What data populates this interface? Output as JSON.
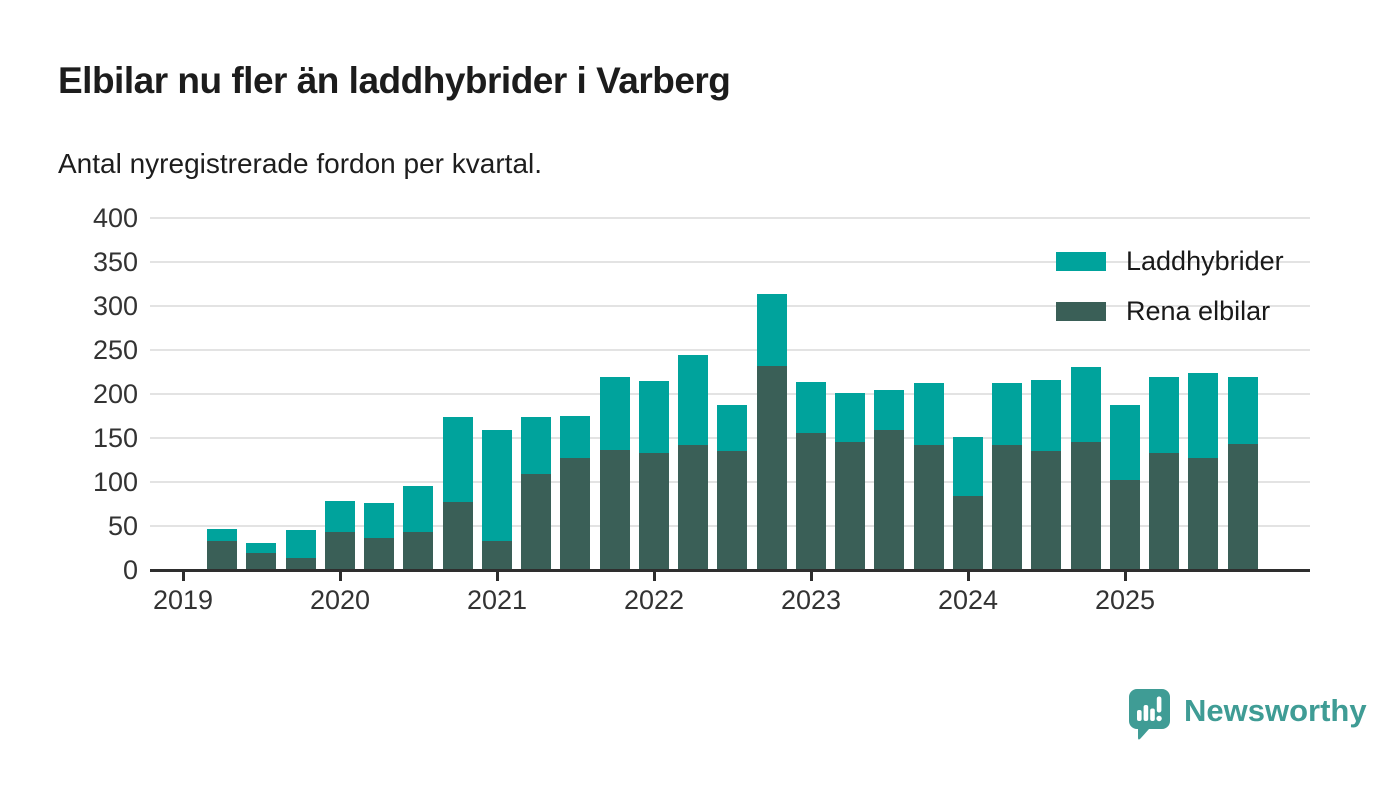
{
  "header": {
    "title": "Elbilar nu fler än laddhybrider i Varberg",
    "subtitle": "Antal nyregistrerade fordon per kvartal."
  },
  "legend": {
    "items": [
      {
        "label": "Laddhybrider",
        "color": "#00a39c"
      },
      {
        "label": "Rena elbilar",
        "color": "#3a5f57"
      }
    ]
  },
  "branding": {
    "name": "Newsworthy",
    "color": "#3f9c95",
    "icon": "newsworthy-speech-bubble-barchart-icon"
  },
  "colors": {
    "background": "#ffffff",
    "laddhybrider": "#00a39c",
    "rena_elbilar": "#3a5f57",
    "axis": "#2e2e2e",
    "axis_text": "#333333",
    "grid": "#e3e3e3",
    "title_text": "#1c1c1c"
  },
  "chart_data": {
    "type": "bar",
    "stacked": true,
    "title": "Elbilar nu fler än laddhybrider i Varberg",
    "subtitle": "Antal nyregistrerade fordon per kvartal.",
    "xlabel": "",
    "ylabel": "",
    "ylim": [
      0,
      400
    ],
    "yticks": [
      0,
      50,
      100,
      150,
      200,
      250,
      300,
      350,
      400
    ],
    "xticks": [
      "2019",
      "2020",
      "2021",
      "2022",
      "2023",
      "2024",
      "2025"
    ],
    "grid": true,
    "legend_position": "top-right",
    "categories": [
      "2019 Q2",
      "2019 Q3",
      "2019 Q4",
      "2020 Q1",
      "2020 Q2",
      "2020 Q3",
      "2020 Q4",
      "2021 Q1",
      "2021 Q2",
      "2021 Q3",
      "2021 Q4",
      "2022 Q1",
      "2022 Q2",
      "2022 Q3",
      "2022 Q4",
      "2023 Q1",
      "2023 Q2",
      "2023 Q3",
      "2023 Q4",
      "2024 Q1",
      "2024 Q2",
      "2024 Q3",
      "2024 Q4",
      "2025 Q1",
      "2025 Q2",
      "2025 Q3",
      "2025 Q4"
    ],
    "series": [
      {
        "name": "Rena elbilar",
        "stack_order": "bottom",
        "color": "#3a5f57",
        "values": [
          33,
          19,
          14,
          43,
          36,
          43,
          77,
          33,
          109,
          127,
          136,
          133,
          142,
          135,
          232,
          156,
          146,
          159,
          142,
          84,
          142,
          135,
          146,
          102,
          133,
          127,
          143
        ]
      },
      {
        "name": "Laddhybrider",
        "stack_order": "top",
        "color": "#00a39c",
        "values": [
          14,
          12,
          32,
          35,
          40,
          53,
          97,
          126,
          65,
          48,
          83,
          82,
          102,
          52,
          82,
          58,
          55,
          46,
          70,
          67,
          70,
          81,
          85,
          85,
          86,
          97,
          76
        ]
      }
    ]
  }
}
